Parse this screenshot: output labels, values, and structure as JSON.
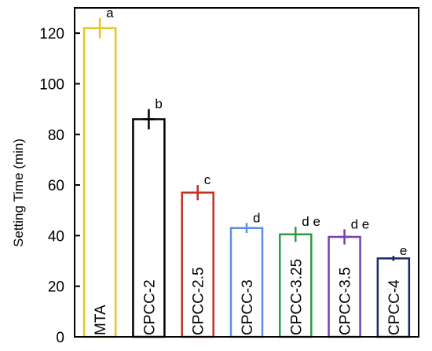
{
  "chart_data": {
    "type": "bar",
    "title": "",
    "ylabel": "Setting Time (min)",
    "xlabel": "",
    "ylim": [
      0,
      130
    ],
    "yticks": [
      0,
      20,
      40,
      60,
      80,
      100,
      120
    ],
    "grid": false,
    "legend": "none",
    "categories": [
      "MTA",
      "CPCC-2",
      "CPCC-2.5",
      "CPCC-3",
      "CPCC-3.25",
      "CPCC-3.5",
      "CPCC-4"
    ],
    "values": [
      122,
      86,
      57,
      43,
      40.5,
      39.5,
      31
    ],
    "errors": [
      4,
      4,
      3,
      2,
      3,
      3,
      1
    ],
    "significance": [
      "a",
      "b",
      "c",
      "d",
      "d e",
      "d e",
      "e"
    ],
    "colors": [
      "#e6c619",
      "#000000",
      "#c0301f",
      "#5b8fe6",
      "#2e9a47",
      "#7a3fb0",
      "#1c2a6b"
    ]
  }
}
